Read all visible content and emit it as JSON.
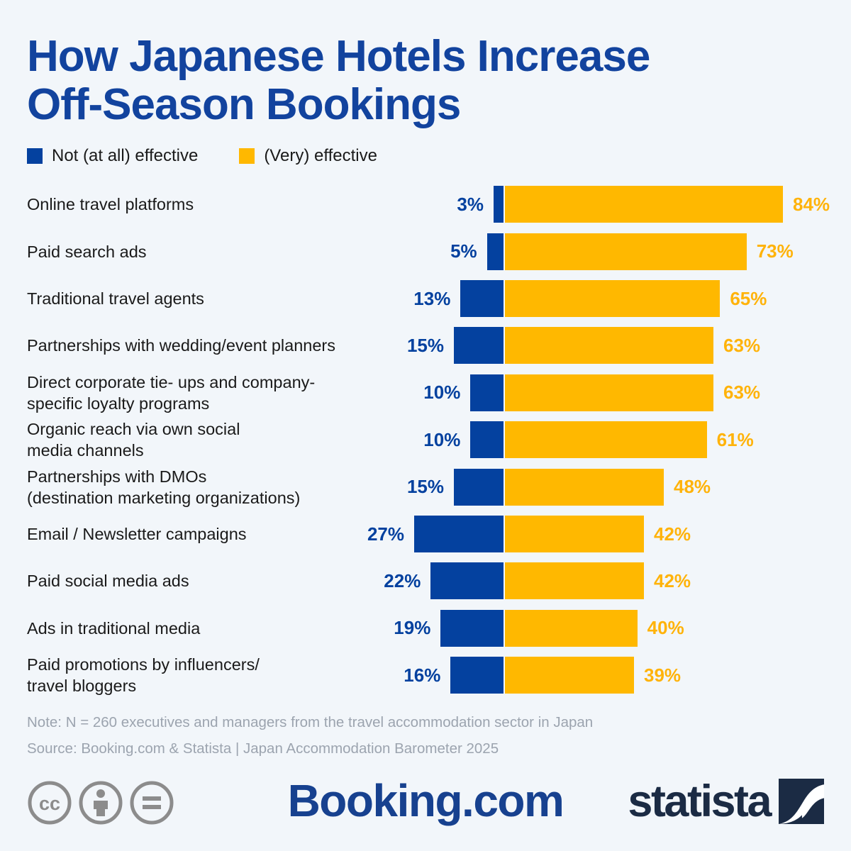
{
  "page": {
    "title_lines": [
      "How Japanese Hotels Increase",
      "Off-Season Bookings"
    ],
    "note": "Note: N = 260 executives and managers from the travel accommodation sector in Japan",
    "source": "Source: Booking.com & Statista | Japan Accommodation Barometer 2025"
  },
  "legend": [
    {
      "label": "Not (at all) effective",
      "color": "#04419F"
    },
    {
      "label": "(Very) effective",
      "color": "#FFB800"
    }
  ],
  "chart_data": {
    "type": "bar",
    "orientation": "horizontal-diverging",
    "title": "How Japanese Hotels Increase Off-Season Bookings",
    "value_suffix": "%",
    "axis_hidden": true,
    "legend_position": "top-left",
    "categories": [
      "Online travel platforms",
      "Paid search ads",
      "Traditional travel agents",
      "Partnerships with wedding/event planners",
      "Direct corporate tie- ups and company-\nspecific loyalty programs",
      "Organic reach via own social\nmedia channels",
      "Partnerships with DMOs\n(destination marketing organizations)",
      "Email / Newsletter campaigns",
      "Paid social media ads",
      "Ads in traditional media",
      "Paid promotions by influencers/\ntravel bloggers"
    ],
    "series": [
      {
        "name": "Not (at all) effective",
        "color": "#04419F",
        "label_color": "#04419F",
        "values": [
          3,
          5,
          13,
          15,
          10,
          10,
          15,
          27,
          22,
          19,
          16
        ]
      },
      {
        "name": "(Very) effective",
        "color": "#FFB800",
        "label_color": "#FFB30A",
        "values": [
          84,
          73,
          65,
          63,
          63,
          61,
          48,
          42,
          42,
          40,
          39
        ]
      }
    ]
  },
  "footer": {
    "booking_logo_text": "Booking.com",
    "statista_logo_text": "statista",
    "cc_icon_names": [
      "cc-icon",
      "attribution-person-icon",
      "equals-nd-icon"
    ]
  },
  "colors": {
    "background": "#F2F6FA",
    "title_blue": "#12439E",
    "bar_blue": "#04419F",
    "bar_yellow": "#FFB800",
    "yellow_label": "#FFB30A",
    "muted_text": "#9CA4AF",
    "statista_navy": "#1B2B44",
    "booking_blue": "#17418F",
    "cc_gray": "#8C8C8C"
  }
}
